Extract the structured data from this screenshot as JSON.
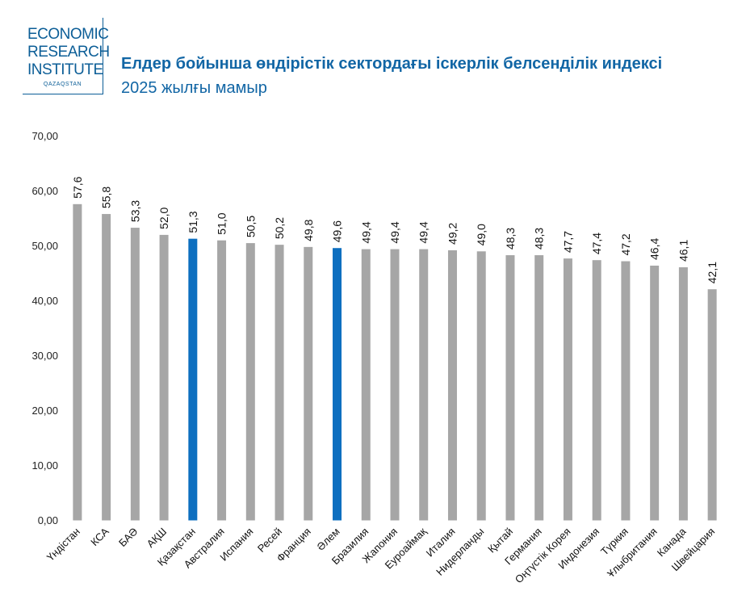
{
  "logo": {
    "line1": "ECONOMIC",
    "line2": "RESEARCH",
    "line3": "INSTITUTE",
    "sub": "QAZAQSTAN"
  },
  "colors": {
    "accent": "#1266a5",
    "bar": "#a6a6a6",
    "highlight": "#0d6fc0"
  },
  "chart_data": {
    "type": "bar",
    "title": "Елдер бойынша өндірістік сектордағы іскерлік белсенділік индексі",
    "subtitle": "2025 жылғы мамыр",
    "categories": [
      "Үндістан",
      "КСА",
      "БАӘ",
      "АҚШ",
      "Қазақстан",
      "Австралия",
      "Испания",
      "Ресей",
      "Франция",
      "Әлем",
      "Бразилия",
      "Жапония",
      "Еуроаймақ",
      "Италия",
      "Нидерланды",
      "Қытай",
      "Германия",
      "Оңтүстік Корея",
      "Индонезия",
      "Түркия",
      "Ұлыбритания",
      "Канада",
      "Швейцария"
    ],
    "values": [
      57.6,
      55.8,
      53.3,
      52.0,
      51.3,
      51.0,
      50.5,
      50.2,
      49.8,
      49.6,
      49.4,
      49.4,
      49.4,
      49.2,
      49.0,
      48.3,
      48.3,
      47.7,
      47.4,
      47.2,
      46.4,
      46.1,
      42.1
    ],
    "value_labels": [
      "57,6",
      "55,8",
      "53,3",
      "52,0",
      "51,3",
      "51,0",
      "50,5",
      "50,2",
      "49,8",
      "49,6",
      "49,4",
      "49,4",
      "49,4",
      "49,2",
      "49,0",
      "48,3",
      "48,3",
      "47,7",
      "47,4",
      "47,2",
      "46,4",
      "46,1",
      "42,1"
    ],
    "highlighted": [
      "Қазақстан",
      "Әлем"
    ],
    "yticks": [
      "0,00",
      "10,00",
      "20,00",
      "30,00",
      "40,00",
      "50,00",
      "60,00",
      "70,00"
    ],
    "ylim": [
      0,
      70
    ],
    "grid": false,
    "legend": "none"
  }
}
